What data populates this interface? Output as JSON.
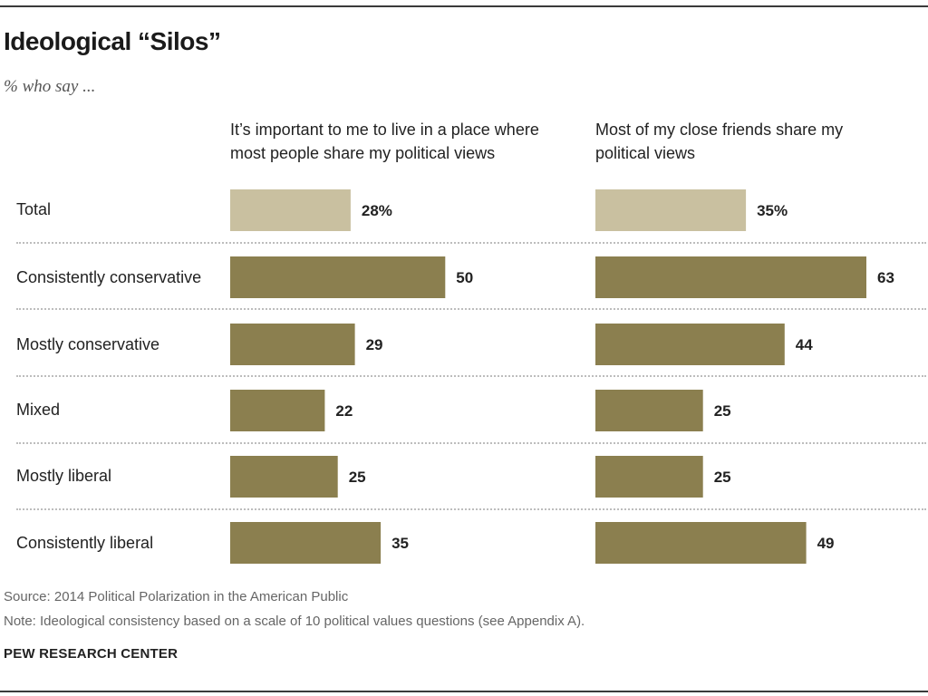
{
  "title": "Ideological “Silos”",
  "subtitle": "% who say ...",
  "source": "Source: 2014 Political Polarization in the American Public",
  "note": "Note: Ideological consistency based on a scale of 10 political values questions (see Appendix A).",
  "brand": "PEW RESEARCH CENTER",
  "colors": {
    "total_bar": "#c9c0a0",
    "group_bar": "#8b7f4f"
  },
  "chart_data": {
    "type": "bar",
    "orientation": "horizontal",
    "categories": [
      "Total",
      "Consistently conservative",
      "Mostly conservative",
      "Mixed",
      "Mostly liberal",
      "Consistently liberal"
    ],
    "series": [
      {
        "name": "It’s important to me to live in a place where most people share my political views",
        "name_lines": [
          "It’s important to me to live in a place where",
          "most people share my political views"
        ],
        "values": [
          28,
          50,
          29,
          22,
          25,
          35
        ],
        "value_labels": [
          "28%",
          "50",
          "29",
          "22",
          "25",
          "35"
        ]
      },
      {
        "name": "Most of my close friends share my political views",
        "name_lines": [
          "Most of my close friends share my",
          "political views"
        ],
        "values": [
          35,
          63,
          44,
          25,
          25,
          49
        ],
        "value_labels": [
          "35%",
          "63",
          "44",
          "25",
          "25",
          "49"
        ]
      }
    ],
    "xlim": [
      0,
      63
    ]
  }
}
